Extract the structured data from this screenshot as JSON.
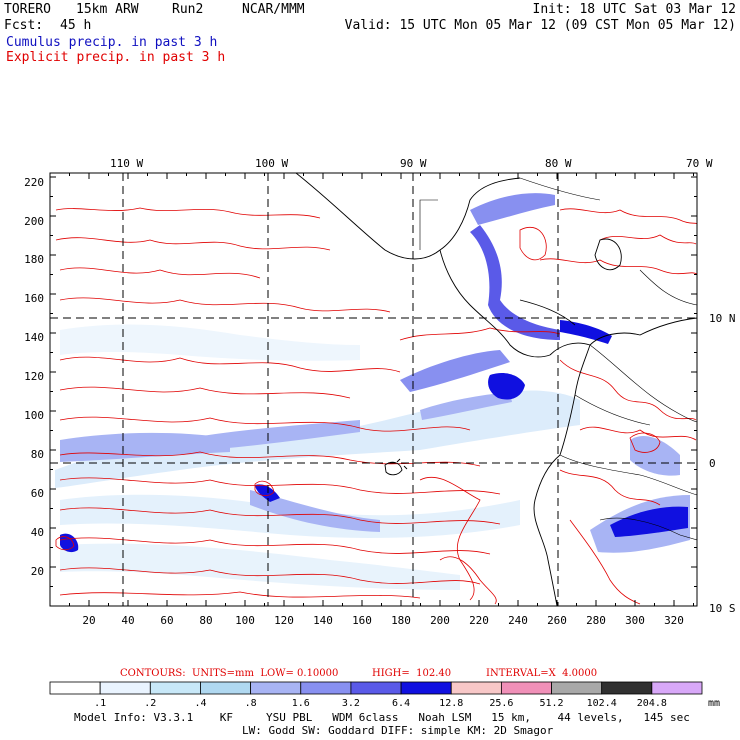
{
  "header": {
    "model": "TORERO",
    "grid": "15km ARW",
    "run": "Run2",
    "org": "NCAR/MMM",
    "init": "Init: 18 UTC Sat 03 Mar 12",
    "fcst_label": "Fcst:",
    "fcst_value": "45 h",
    "valid": "Valid: 15 UTC Mon 05 Mar 12 (09 CST Mon 05 Mar 12)",
    "field1": "Cumulus precip. in past 3 h",
    "field2": "Explicit precip. in past 3 h"
  },
  "axes": {
    "lon_labels": [
      "110 W",
      "100 W",
      "90 W",
      "80 W",
      "70 W"
    ],
    "lat_labels": [
      "10 N",
      "0",
      "10 S"
    ],
    "y_ticks": [
      "220",
      "200",
      "180",
      "160",
      "140",
      "120",
      "100",
      "80",
      "60",
      "40",
      "20"
    ],
    "x_ticks": [
      "20",
      "40",
      "60",
      "80",
      "100",
      "120",
      "140",
      "160",
      "180",
      "200",
      "220",
      "240",
      "260",
      "280",
      "300",
      "320"
    ]
  },
  "contours": {
    "units": "CONTOURS:  UNITS=mm  LOW= 0.10000",
    "high": "HIGH=  102.40",
    "interval": "INTERVAL=X  4.0000"
  },
  "colorbar": {
    "labels": [
      ".1",
      ".2",
      ".4",
      ".8",
      "1.6",
      "3.2",
      "6.4",
      "12.8",
      "25.6",
      "51.2",
      "102.4",
      "204.8"
    ],
    "unit": "mm",
    "colors": [
      "#ffffff",
      "#eaf4ff",
      "#c8e8f8",
      "#b0d8f0",
      "#a8b4f4",
      "#8890f0",
      "#5a5ae8",
      "#1010e0",
      "#f8c8c8",
      "#f090b8",
      "#a8a8a8",
      "#303030",
      "#d8a8f8"
    ]
  },
  "footer": {
    "line1": "Model Info: V3.3.1    KF     YSU PBL   WDM 6class   Noah LSM   15 km,    44 levels,   145 sec",
    "line2": "LW: Godd SW: Goddard DIFF: simple KM: 2D Smagor"
  }
}
